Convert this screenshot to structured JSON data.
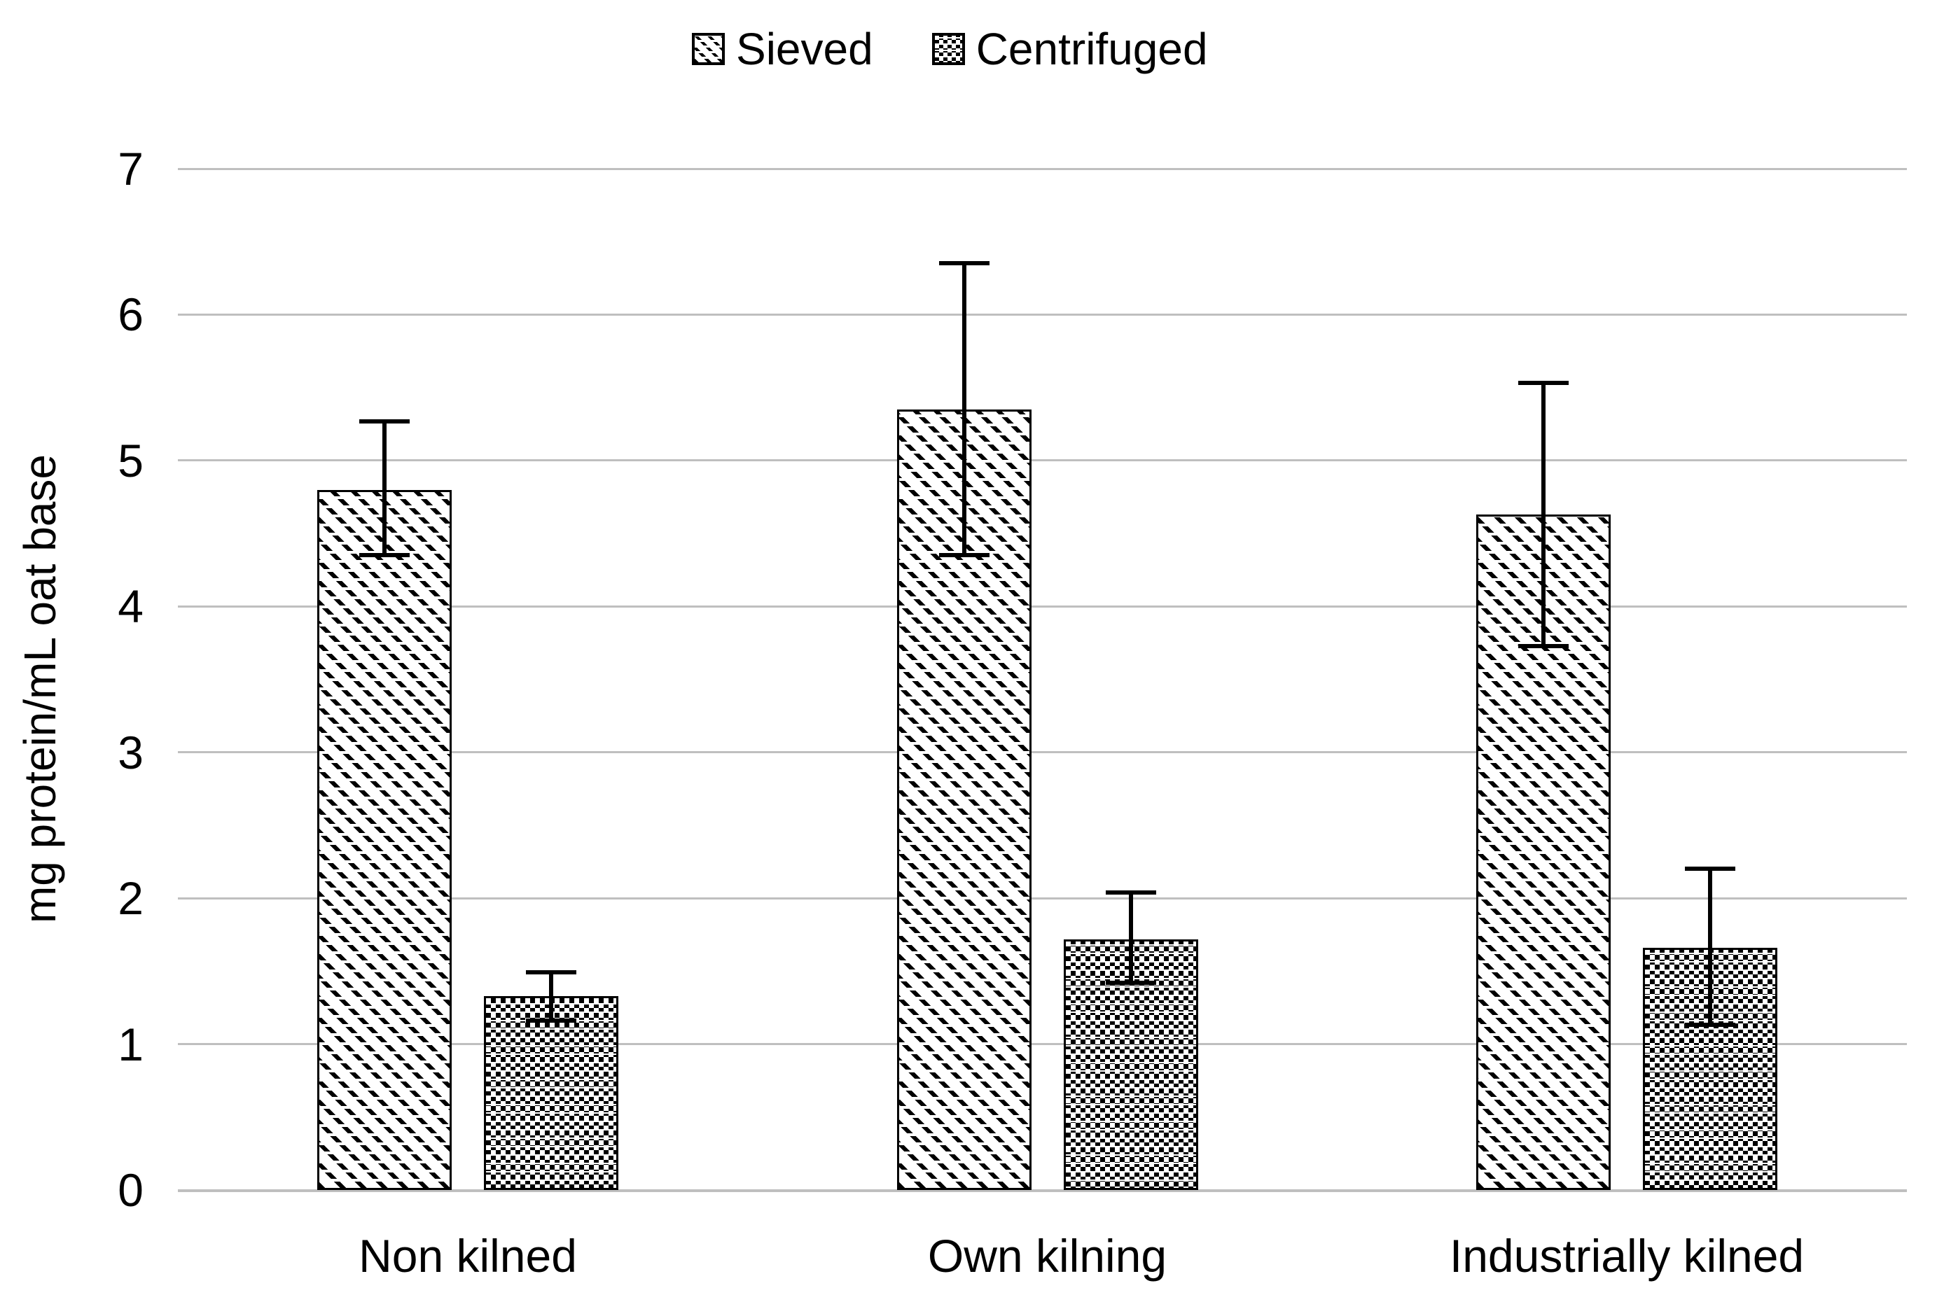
{
  "legend": {
    "items": [
      {
        "label": "Sieved",
        "pattern": "diagonal-hatch"
      },
      {
        "label": "Centrifuged",
        "pattern": "checker-hatch"
      }
    ]
  },
  "y_axis": {
    "title": "mg protein/mL oat base",
    "ticks": [
      0,
      1,
      2,
      3,
      4,
      5,
      6,
      7
    ]
  },
  "x_axis": {
    "categories": [
      "Non kilned",
      "Own kilning",
      "Industrially kilned"
    ]
  },
  "chart_data": {
    "type": "bar",
    "title": "",
    "categories": [
      "Non kilned",
      "Own kilning",
      "Industrially kilned"
    ],
    "series": [
      {
        "name": "Sieved",
        "pattern": "diagonal-hatch",
        "values": [
          4.8,
          5.35,
          4.63
        ],
        "error_plus": [
          0.47,
          1.0,
          0.9
        ],
        "error_minus": [
          0.45,
          1.0,
          0.9
        ]
      },
      {
        "name": "Centrifuged",
        "pattern": "checker-hatch",
        "values": [
          1.33,
          1.72,
          1.66
        ],
        "error_plus": [
          0.16,
          0.32,
          0.54
        ],
        "error_minus": [
          0.17,
          0.3,
          0.53
        ]
      }
    ],
    "xlabel": "",
    "ylabel": "mg protein/mL oat base",
    "ylim": [
      0,
      7
    ],
    "ytick_step": 1,
    "grid": true,
    "legend_position": "top",
    "colors": {
      "bar_fill": "#ffffff",
      "bar_stroke": "#000000",
      "gridline": "#bfbfbf",
      "text": "#000000"
    }
  }
}
